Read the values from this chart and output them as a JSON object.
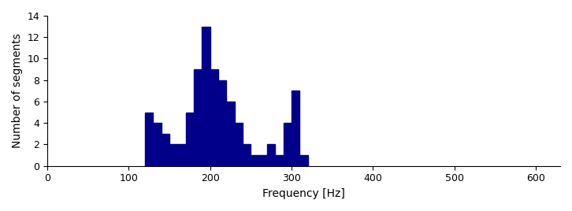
{
  "bin_edges": [
    120,
    130,
    140,
    150,
    160,
    170,
    180,
    190,
    200,
    210,
    220,
    230,
    240,
    250,
    260,
    270,
    280,
    290,
    300,
    310,
    320
  ],
  "counts": [
    5,
    4,
    3,
    2,
    2,
    5,
    9,
    13,
    9,
    8,
    6,
    4,
    2,
    1,
    1,
    2,
    1,
    4,
    7,
    1
  ],
  "bar_color": "#00008B",
  "xlabel": "Frequency [Hz]",
  "ylabel": "Number of segments",
  "xlim": [
    0,
    630
  ],
  "ylim": [
    0,
    14
  ],
  "xticks": [
    0,
    100,
    200,
    300,
    400,
    500,
    600
  ],
  "yticks": [
    0,
    2,
    4,
    6,
    8,
    10,
    12,
    14
  ],
  "figsize": [
    7.26,
    2.68
  ],
  "dpi": 100
}
